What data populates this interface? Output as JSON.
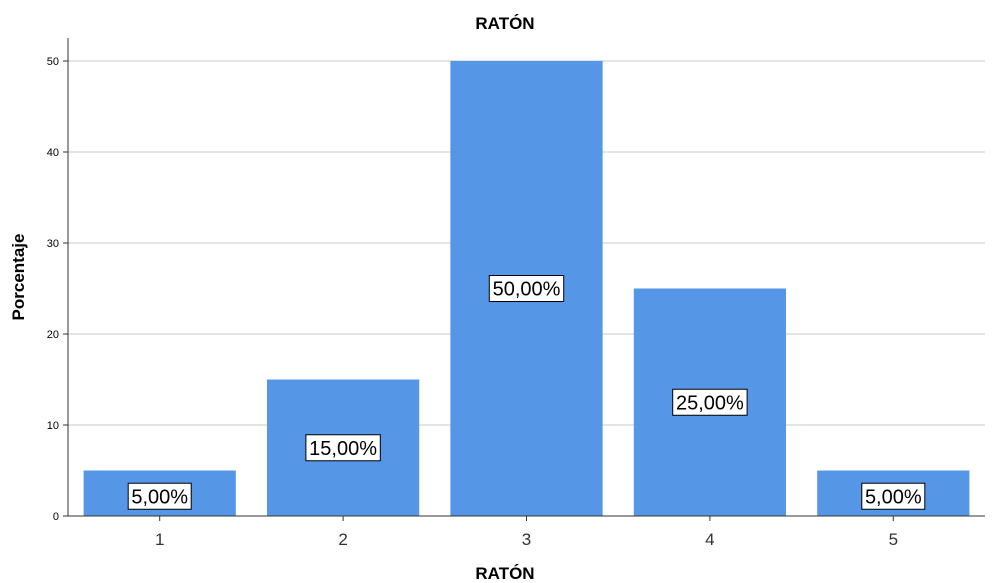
{
  "chart_data": {
    "type": "bar",
    "title": "RATÓN",
    "xlabel": "RATÓN",
    "ylabel": "Porcentaje",
    "categories": [
      "1",
      "2",
      "3",
      "4",
      "5"
    ],
    "values": [
      5,
      15,
      50,
      25,
      5
    ],
    "data_labels": [
      "5,00%",
      "15,00%",
      "50,00%",
      "25,00%",
      "5,00%"
    ],
    "yticks": [
      "0",
      "10",
      "20",
      "30",
      "40",
      "50"
    ],
    "ylim": [
      0,
      50
    ],
    "grid": true,
    "bar_color": "#5596e6"
  }
}
